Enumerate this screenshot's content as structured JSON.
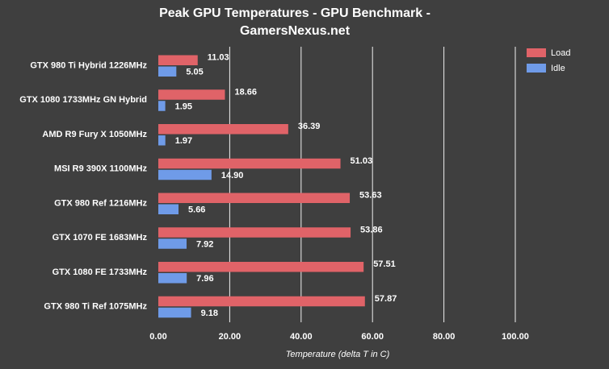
{
  "chart_data": {
    "type": "hbar",
    "title": "Peak GPU Temperatures - GPU Benchmark - GamersNexus.net",
    "x_label": "Temperature (delta T in C)",
    "categories": [
      "GTX 980 Ti Hybrid 1226MHz",
      "GTX 1080 1733MHz GN Hybrid",
      "AMD R9 Fury X 1050MHz",
      "MSI R9 390X 1100MHz",
      "GTX 980 Ref 1216MHz",
      "GTX 1070 FE 1683MHz",
      "GTX 1080 FE 1733MHz",
      "GTX 980 Ti Ref 1075MHz"
    ],
    "series": [
      {
        "name": "Load",
        "color": "#e06368",
        "values": [
          11.03,
          18.66,
          36.39,
          51.03,
          53.63,
          53.86,
          57.51,
          57.87
        ]
      },
      {
        "name": "Idle",
        "color": "#6f9be8",
        "values": [
          5.05,
          1.95,
          1.97,
          14.9,
          5.66,
          7.92,
          7.96,
          9.18
        ],
        "value_labels": [
          "5.05",
          "1.95",
          "1.97",
          "14.90",
          "5.66",
          "7.92",
          "7.96",
          "9.18"
        ]
      }
    ],
    "xlim": [
      0,
      100
    ],
    "xticks": [
      {
        "value": 0,
        "label": "0.00"
      },
      {
        "value": 20,
        "label": "20.00"
      },
      {
        "value": 40,
        "label": "40.00"
      },
      {
        "value": 60,
        "label": "60.00"
      },
      {
        "value": 80,
        "label": "80.00"
      },
      {
        "value": 100,
        "label": "100.00"
      }
    ],
    "grid": true,
    "legend": "top-right"
  }
}
